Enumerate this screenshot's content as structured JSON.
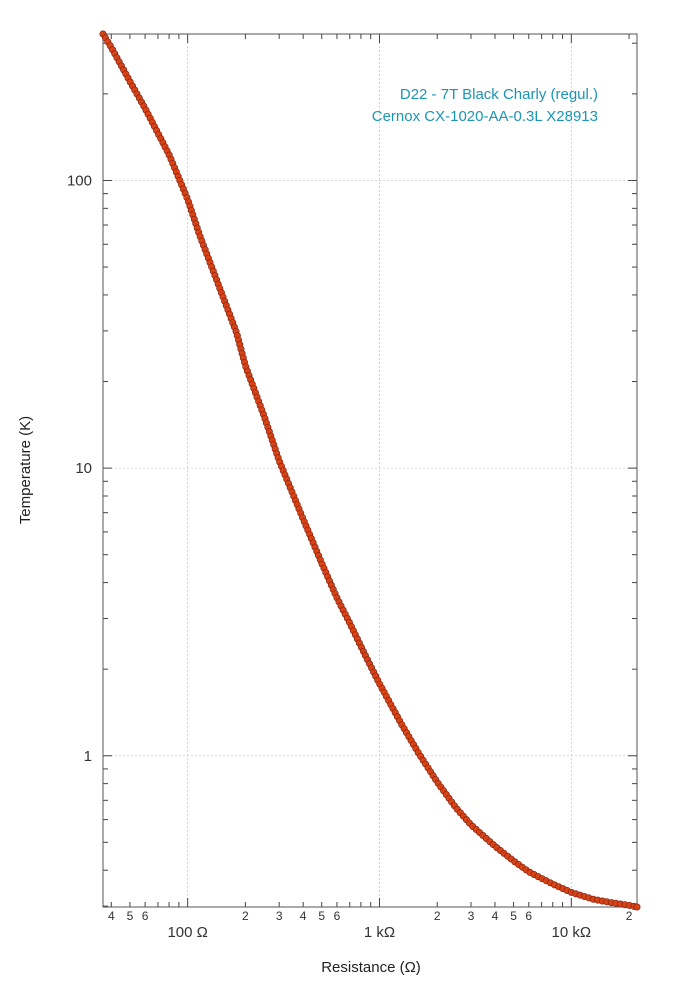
{
  "chart_data": {
    "type": "scatter",
    "title": "",
    "xlabel": "Resistance (Ω)",
    "ylabel": "Temperature (K)",
    "xscale": "log",
    "yscale": "log",
    "xlim": [
      36.2,
      22000
    ],
    "ylim": [
      0.298,
      323
    ],
    "grid": true,
    "annotation": [
      "D22 - 7T Black Charly (regul.)",
      "Cernox CX-1020-AA-0.3L X28913"
    ],
    "annotation_color": "#1b95b3",
    "marker_color": "#d84315",
    "line_color": "#7a1f10",
    "x_major_ticks": [
      {
        "value": 100,
        "label": "100  Ω"
      },
      {
        "value": 1000,
        "label": "1 kΩ"
      },
      {
        "value": 10000,
        "label": "10 kΩ"
      }
    ],
    "x_minor_ticks": [
      {
        "value": 40,
        "label": "4"
      },
      {
        "value": 50,
        "label": "5"
      },
      {
        "value": 60,
        "label": "6"
      },
      {
        "value": 200,
        "label": "2"
      },
      {
        "value": 300,
        "label": "3"
      },
      {
        "value": 400,
        "label": "4"
      },
      {
        "value": 500,
        "label": "5"
      },
      {
        "value": 600,
        "label": "6"
      },
      {
        "value": 2000,
        "label": "2"
      },
      {
        "value": 3000,
        "label": "3"
      },
      {
        "value": 4000,
        "label": "4"
      },
      {
        "value": 5000,
        "label": "5"
      },
      {
        "value": 6000,
        "label": "6"
      },
      {
        "value": 20000,
        "label": "2"
      }
    ],
    "y_major_ticks": [
      {
        "value": 1,
        "label": "1"
      },
      {
        "value": 10,
        "label": "10"
      },
      {
        "value": 100,
        "label": "100"
      }
    ],
    "series": [
      {
        "x": [
          36.2,
          40,
          50,
          60,
          80,
          100,
          115,
          140,
          180,
          200,
          250,
          300,
          400,
          500,
          600,
          700,
          850,
          1000,
          1300,
          1600,
          2000,
          2500,
          3000,
          4000,
          5000,
          6000,
          8000,
          10000,
          13000,
          16000,
          20000,
          22000
        ],
        "y": [
          323,
          290,
          221,
          178,
          123,
          86,
          65,
          46,
          29.5,
          22.7,
          15.2,
          10.6,
          6.65,
          4.67,
          3.54,
          2.89,
          2.21,
          1.78,
          1.29,
          1.02,
          0.81,
          0.66,
          0.575,
          0.485,
          0.431,
          0.395,
          0.358,
          0.335,
          0.317,
          0.309,
          0.302,
          0.298
        ]
      }
    ]
  }
}
